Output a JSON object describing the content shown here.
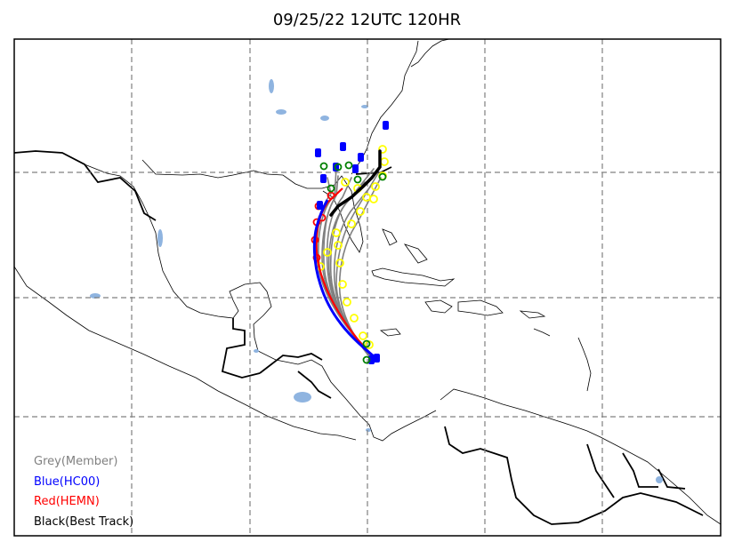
{
  "title": "09/25/22 12UTC 120HR",
  "legend": [
    {
      "label": "Grey(Member)",
      "color": "#808080"
    },
    {
      "label": "Blue(HC00)",
      "color": "#0000ff"
    },
    {
      "label": "Red(HEMN)",
      "color": "#ff0000"
    },
    {
      "label": "Black(Best Track)",
      "color": "#000000"
    }
  ],
  "colors": {
    "member": "#808080",
    "hc00": "#0000ff",
    "hemn": "#ff0000",
    "best_track": "#000000",
    "intensity_yellow": "#ffff00",
    "intensity_green": "#008000",
    "lakes": "#8fb4e0",
    "grid": "#808080"
  }
}
